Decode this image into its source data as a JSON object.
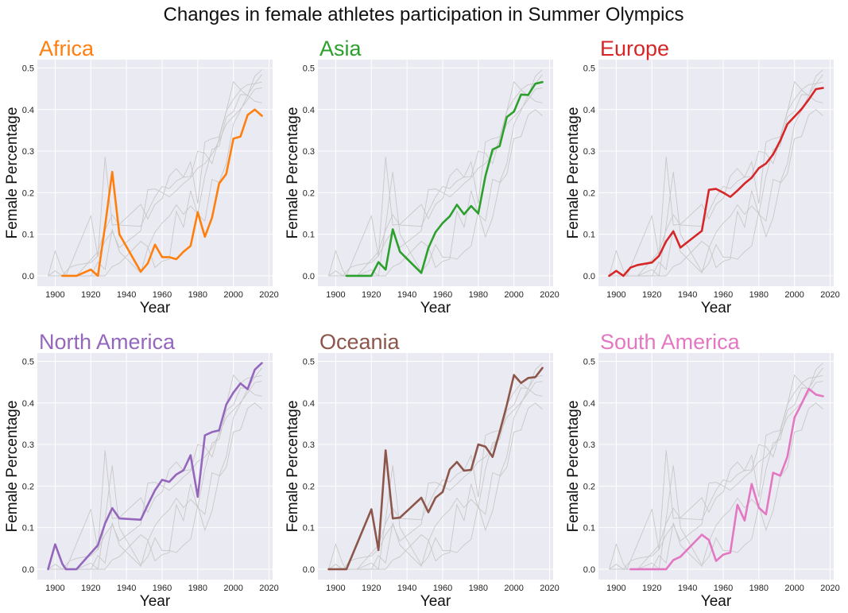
{
  "figure": {
    "title": "Changes in female athletes participation in Summer Olympics",
    "background": "#ffffff",
    "panel_background": "#eaeaf2",
    "grid_color": "#ffffff",
    "background_line_color": "#c8c8c8"
  },
  "chart_data": {
    "type": "line",
    "title": "Changes in female athletes participation in Summer Olympics",
    "xlabel": "Year",
    "ylabel": "Female Percentage",
    "xlim": [
      1890,
      2022
    ],
    "ylim": [
      -0.025,
      0.52
    ],
    "xticks": [
      "1900",
      "1920",
      "1940",
      "1960",
      "1980",
      "2000",
      "2020"
    ],
    "yticks": [
      "0.0",
      "0.1",
      "0.2",
      "0.3",
      "0.4",
      "0.5"
    ],
    "grid": true,
    "layout": "2x3 small multiples; each panel highlights one continent, the other continents drawn in light gray",
    "series": [
      {
        "name": "Africa",
        "color": "#ff7f0e",
        "points": [
          [
            1904,
            0.0
          ],
          [
            1908,
            0.0
          ],
          [
            1912,
            0.0
          ],
          [
            1920,
            0.015
          ],
          [
            1924,
            0.0
          ],
          [
            1928,
            0.12
          ],
          [
            1932,
            0.25
          ],
          [
            1936,
            0.1
          ],
          [
            1948,
            0.01
          ],
          [
            1952,
            0.03
          ],
          [
            1956,
            0.075
          ],
          [
            1960,
            0.045
          ],
          [
            1964,
            0.045
          ],
          [
            1968,
            0.04
          ],
          [
            1972,
            0.058
          ],
          [
            1976,
            0.072
          ],
          [
            1980,
            0.153
          ],
          [
            1984,
            0.094
          ],
          [
            1988,
            0.14
          ],
          [
            1992,
            0.222
          ],
          [
            1996,
            0.245
          ],
          [
            2000,
            0.33
          ],
          [
            2004,
            0.335
          ],
          [
            2008,
            0.387
          ],
          [
            2012,
            0.4
          ],
          [
            2016,
            0.385
          ]
        ]
      },
      {
        "name": "Asia",
        "color": "#2ca02c",
        "points": [
          [
            1906,
            0.0
          ],
          [
            1912,
            0.0
          ],
          [
            1920,
            0.0
          ],
          [
            1924,
            0.033
          ],
          [
            1928,
            0.015
          ],
          [
            1932,
            0.112
          ],
          [
            1936,
            0.058
          ],
          [
            1948,
            0.007
          ],
          [
            1952,
            0.067
          ],
          [
            1956,
            0.105
          ],
          [
            1960,
            0.127
          ],
          [
            1964,
            0.143
          ],
          [
            1968,
            0.171
          ],
          [
            1972,
            0.148
          ],
          [
            1976,
            0.168
          ],
          [
            1980,
            0.15
          ],
          [
            1984,
            0.24
          ],
          [
            1988,
            0.304
          ],
          [
            1992,
            0.312
          ],
          [
            1996,
            0.382
          ],
          [
            2000,
            0.395
          ],
          [
            2004,
            0.436
          ],
          [
            2008,
            0.435
          ],
          [
            2012,
            0.462
          ],
          [
            2016,
            0.466
          ]
        ]
      },
      {
        "name": "Europe",
        "color": "#d62728",
        "points": [
          [
            1896,
            0.0
          ],
          [
            1900,
            0.012
          ],
          [
            1904,
            0.0
          ],
          [
            1906,
            0.01
          ],
          [
            1908,
            0.02
          ],
          [
            1912,
            0.026
          ],
          [
            1920,
            0.032
          ],
          [
            1924,
            0.048
          ],
          [
            1928,
            0.083
          ],
          [
            1932,
            0.107
          ],
          [
            1936,
            0.068
          ],
          [
            1948,
            0.108
          ],
          [
            1952,
            0.207
          ],
          [
            1956,
            0.209
          ],
          [
            1960,
            0.2
          ],
          [
            1964,
            0.19
          ],
          [
            1968,
            0.205
          ],
          [
            1972,
            0.222
          ],
          [
            1976,
            0.236
          ],
          [
            1980,
            0.259
          ],
          [
            1984,
            0.27
          ],
          [
            1988,
            0.292
          ],
          [
            1992,
            0.325
          ],
          [
            1996,
            0.365
          ],
          [
            2000,
            0.383
          ],
          [
            2004,
            0.401
          ],
          [
            2008,
            0.424
          ],
          [
            2012,
            0.449
          ],
          [
            2016,
            0.452
          ]
        ]
      },
      {
        "name": "North America",
        "color": "#9467bd",
        "points": [
          [
            1896,
            0.0
          ],
          [
            1900,
            0.06
          ],
          [
            1904,
            0.013
          ],
          [
            1906,
            0.0
          ],
          [
            1908,
            0.0
          ],
          [
            1912,
            0.0
          ],
          [
            1924,
            0.058
          ],
          [
            1928,
            0.11
          ],
          [
            1932,
            0.147
          ],
          [
            1936,
            0.122
          ],
          [
            1948,
            0.119
          ],
          [
            1952,
            0.155
          ],
          [
            1956,
            0.19
          ],
          [
            1960,
            0.215
          ],
          [
            1964,
            0.21
          ],
          [
            1968,
            0.228
          ],
          [
            1972,
            0.238
          ],
          [
            1976,
            0.274
          ],
          [
            1980,
            0.174
          ],
          [
            1984,
            0.322
          ],
          [
            1988,
            0.33
          ],
          [
            1992,
            0.334
          ],
          [
            1996,
            0.396
          ],
          [
            2000,
            0.425
          ],
          [
            2004,
            0.447
          ],
          [
            2008,
            0.433
          ],
          [
            2012,
            0.48
          ],
          [
            2016,
            0.496
          ]
        ]
      },
      {
        "name": "Oceania",
        "color": "#8c564b",
        "points": [
          [
            1896,
            0.0
          ],
          [
            1900,
            0.0
          ],
          [
            1904,
            0.0
          ],
          [
            1906,
            0.0
          ],
          [
            1920,
            0.144
          ],
          [
            1924,
            0.046
          ],
          [
            1928,
            0.286
          ],
          [
            1932,
            0.122
          ],
          [
            1936,
            0.124
          ],
          [
            1948,
            0.172
          ],
          [
            1952,
            0.137
          ],
          [
            1956,
            0.172
          ],
          [
            1960,
            0.186
          ],
          [
            1964,
            0.24
          ],
          [
            1968,
            0.258
          ],
          [
            1972,
            0.237
          ],
          [
            1976,
            0.239
          ],
          [
            1980,
            0.3
          ],
          [
            1984,
            0.295
          ],
          [
            1988,
            0.27
          ],
          [
            1992,
            0.33
          ],
          [
            1996,
            0.395
          ],
          [
            2000,
            0.467
          ],
          [
            2004,
            0.448
          ],
          [
            2008,
            0.46
          ],
          [
            2012,
            0.462
          ],
          [
            2016,
            0.484
          ]
        ]
      },
      {
        "name": "South America",
        "color": "#e377c2",
        "points": [
          [
            1908,
            0.0
          ],
          [
            1912,
            0.0
          ],
          [
            1920,
            0.0
          ],
          [
            1924,
            0.0
          ],
          [
            1928,
            0.0
          ],
          [
            1932,
            0.022
          ],
          [
            1936,
            0.03
          ],
          [
            1948,
            0.083
          ],
          [
            1952,
            0.07
          ],
          [
            1956,
            0.02
          ],
          [
            1960,
            0.035
          ],
          [
            1964,
            0.04
          ],
          [
            1968,
            0.155
          ],
          [
            1972,
            0.117
          ],
          [
            1976,
            0.205
          ],
          [
            1980,
            0.148
          ],
          [
            1984,
            0.132
          ],
          [
            1988,
            0.232
          ],
          [
            1992,
            0.225
          ],
          [
            1996,
            0.27
          ],
          [
            2000,
            0.365
          ],
          [
            2004,
            0.398
          ],
          [
            2008,
            0.434
          ],
          [
            2012,
            0.42
          ],
          [
            2016,
            0.416
          ]
        ]
      }
    ]
  }
}
